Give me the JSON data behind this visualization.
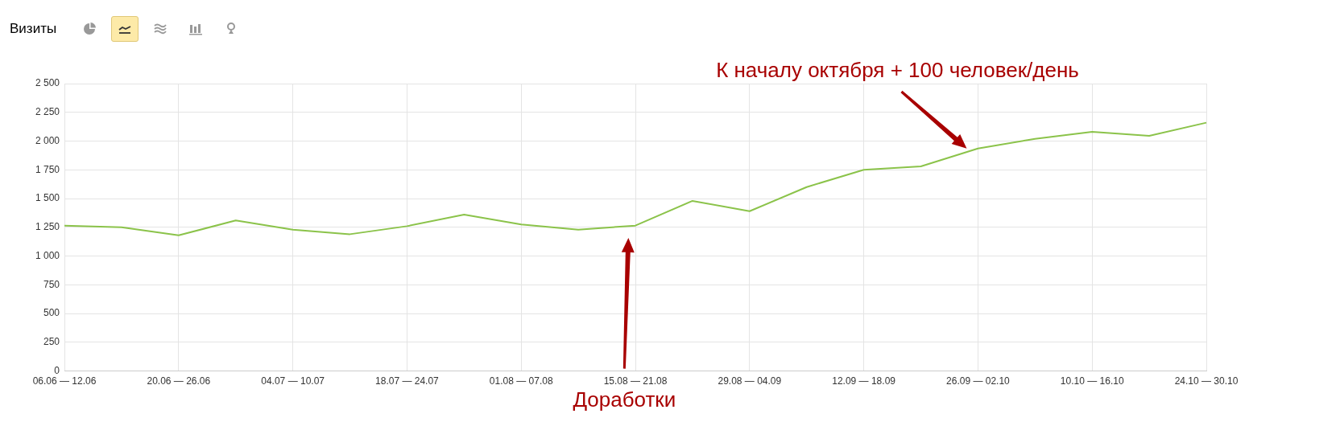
{
  "chart_data": {
    "type": "line",
    "title": "Визиты",
    "categories": [
      "06.06 — 12.06",
      null,
      "20.06 — 26.06",
      null,
      "04.07 — 10.07",
      null,
      "18.07 — 24.07",
      null,
      "01.08 — 07.08",
      null,
      "15.08 — 21.08",
      null,
      "29.08 — 04.09",
      null,
      "12.09 — 18.09",
      null,
      "26.09 — 02.10",
      null,
      "10.10 — 16.10",
      null,
      "24.10 — 30.10"
    ],
    "series": [
      {
        "color": "#8bc34a",
        "values": [
          1265,
          1250,
          1180,
          1310,
          1230,
          1190,
          1260,
          1360,
          1275,
          1230,
          1265,
          1480,
          1390,
          1600,
          1750,
          1780,
          1935,
          2020,
          2080,
          2045,
          2160
        ]
      }
    ],
    "ylim": [
      0,
      2500
    ],
    "yticks": [
      0,
      250,
      500,
      750,
      {
        "value": 1000,
        "label": "1 000"
      },
      {
        "value": 1250,
        "label": "1 250"
      },
      {
        "value": 1500,
        "label": "1 500"
      },
      {
        "value": 1750,
        "label": "1 750"
      },
      {
        "value": 2000,
        "label": "2 000"
      },
      {
        "value": 2250,
        "label": "2 250"
      },
      {
        "value": 2500,
        "label": "2 500"
      }
    ],
    "grid": true,
    "marker": "none",
    "line_style": "solid",
    "annotations": [
      "Доработки",
      "К началу октября + 100 человек/день"
    ]
  }
}
